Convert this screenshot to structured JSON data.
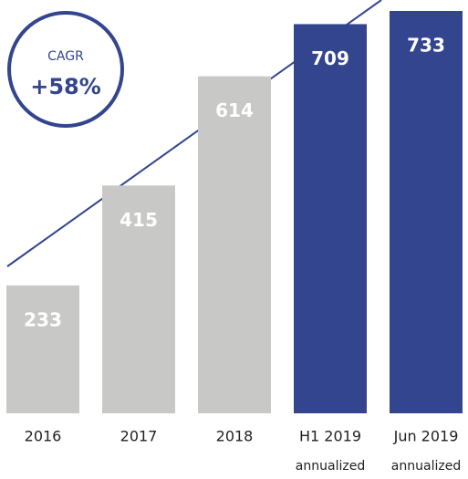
{
  "chart_data": {
    "type": "bar",
    "categories": [
      "2016",
      "2017",
      "2018",
      "H1 2019",
      "Jun 2019"
    ],
    "category_notes": [
      null,
      null,
      null,
      "annualized",
      "annualized"
    ],
    "values": [
      233,
      415,
      614,
      709,
      733
    ],
    "colors": [
      "#c8c9c7",
      "#c8c9c7",
      "#c8c9c7",
      "#33458f",
      "#33458f"
    ],
    "annotation": {
      "label": "CAGR",
      "text": "+58%"
    }
  }
}
